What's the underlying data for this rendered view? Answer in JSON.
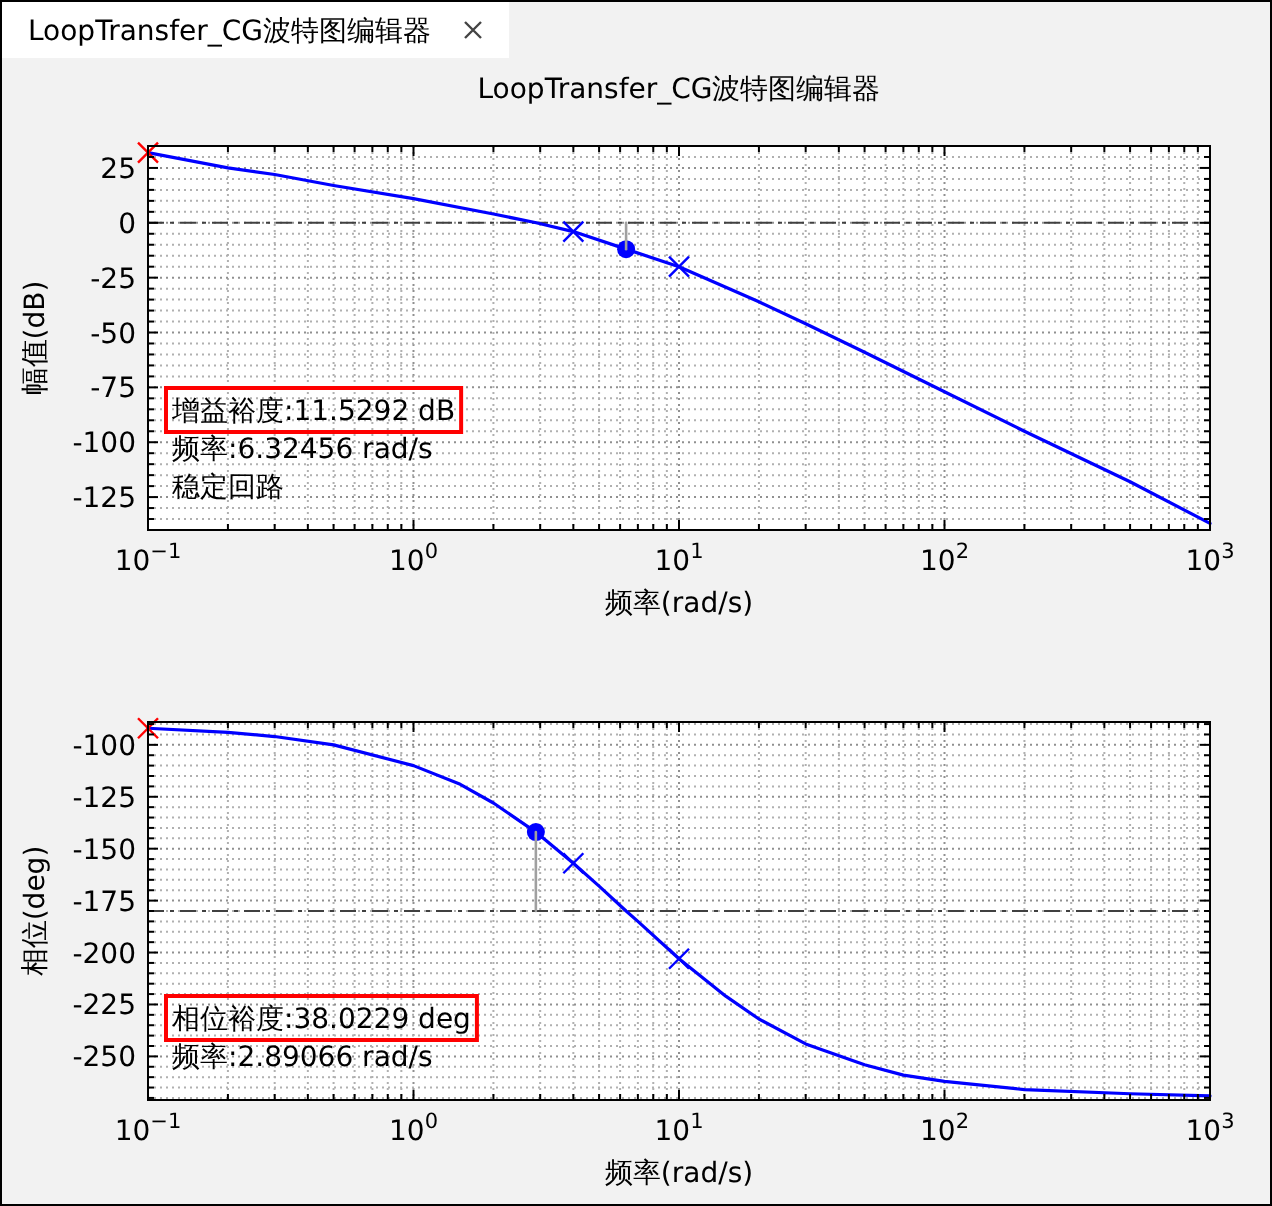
{
  "chart_data": [
    {
      "type": "other",
      "title": "LoopTransfer_CG波特图编辑器"
    },
    {
      "type": "line",
      "title": "LoopTransfer_CG波特图编辑器",
      "xlabel": "频率(rad/s)",
      "ylabel": "幅值(dB)",
      "log": "x",
      "grid": true,
      "xlim": [
        0.1,
        1000
      ],
      "xticks": [
        {
          "value": 0.1,
          "label": "10$^{−1}$"
        },
        {
          "value": 1,
          "label": "10$^{0}$"
        },
        {
          "value": 10,
          "label": "10$^{1}$"
        },
        {
          "value": 100,
          "label": "10$^{2}$"
        },
        {
          "value": 1000,
          "label": "10$^{3}$"
        }
      ],
      "ylim": [
        -140,
        35
      ],
      "yticks": [
        -125,
        -100,
        -75,
        -50,
        -25,
        0,
        25
      ],
      "ref_lines": [
        {
          "axis": "y",
          "value": 0,
          "color": "#404040",
          "line_style": "dashed"
        }
      ],
      "series": [
        {
          "type": "line",
          "color": "#0000ff",
          "x": [
            0.1,
            0.2,
            0.3,
            0.5,
            1,
            2,
            2.9,
            4,
            6.32,
            10,
            20,
            30,
            50,
            100,
            200,
            500,
            1000
          ],
          "values": [
            32,
            25,
            22,
            17,
            11,
            4,
            0,
            -4,
            -12,
            -20,
            -36,
            -46,
            -59,
            -77,
            -95,
            -118,
            -137
          ]
        },
        {
          "type": "scatter",
          "marker": "cross",
          "color": "#0000ff",
          "x": [
            4,
            10
          ],
          "values": [
            -4,
            -20
          ]
        },
        {
          "type": "scatter",
          "marker": "circle",
          "color": "#0000ff",
          "x": [
            6.32
          ],
          "values": [
            -12
          ]
        },
        {
          "type": "line",
          "color": "#a0a0a0",
          "x": [
            6.32,
            6.32
          ],
          "values": [
            -12,
            0
          ]
        },
        {
          "type": "scatter",
          "marker": "cross",
          "color": "#ff0000",
          "x": [
            0.1
          ],
          "values": [
            32
          ]
        }
      ],
      "annotations": [
        "增益裕度:11.5292 dB",
        "频率:6.32456 rad/s",
        "稳定回路"
      ]
    },
    {
      "type": "line",
      "xlabel": "频率(rad/s)",
      "ylabel": "相位(deg)",
      "log": "x",
      "grid": true,
      "xlim": [
        0.1,
        1000
      ],
      "xticks": [
        {
          "value": 0.1,
          "label": "10$^{−1}$"
        },
        {
          "value": 1,
          "label": "10$^{0}$"
        },
        {
          "value": 10,
          "label": "10$^{1}$"
        },
        {
          "value": 100,
          "label": "10$^{2}$"
        },
        {
          "value": 1000,
          "label": "10$^{3}$"
        }
      ],
      "ylim": [
        -271,
        -89
      ],
      "yticks": [
        -250,
        -225,
        -200,
        -175,
        -150,
        -125,
        -100
      ],
      "ref_lines": [
        {
          "axis": "y",
          "value": -180,
          "color": "#404040",
          "line_style": "dashed"
        }
      ],
      "series": [
        {
          "type": "line",
          "color": "#0000ff",
          "x": [
            0.1,
            0.2,
            0.3,
            0.5,
            1,
            1.5,
            2,
            2.89,
            4,
            5,
            6.32,
            7,
            10,
            15,
            20,
            30,
            50,
            70,
            100,
            200,
            500,
            1000
          ],
          "values": [
            -92,
            -94,
            -96,
            -100,
            -110,
            -119,
            -128,
            -142,
            -157,
            -168,
            -180,
            -185,
            -203,
            -221,
            -232,
            -244,
            -254,
            -259,
            -262,
            -266,
            -268,
            -269
          ]
        },
        {
          "type": "scatter",
          "marker": "cross",
          "color": "#0000ff",
          "x": [
            4,
            10
          ],
          "values": [
            -157,
            -203
          ]
        },
        {
          "type": "scatter",
          "marker": "circle",
          "color": "#0000ff",
          "x": [
            2.89
          ],
          "values": [
            -142
          ]
        },
        {
          "type": "line",
          "color": "#a0a0a0",
          "x": [
            2.89,
            2.89
          ],
          "values": [
            -142,
            -180
          ]
        },
        {
          "type": "scatter",
          "marker": "cross",
          "color": "#ff0000",
          "x": [
            0.1
          ],
          "values": [
            -92
          ]
        }
      ],
      "annotations": [
        "相位裕度:38.0229 deg",
        "频率:2.89066 rad/s"
      ]
    }
  ]
}
